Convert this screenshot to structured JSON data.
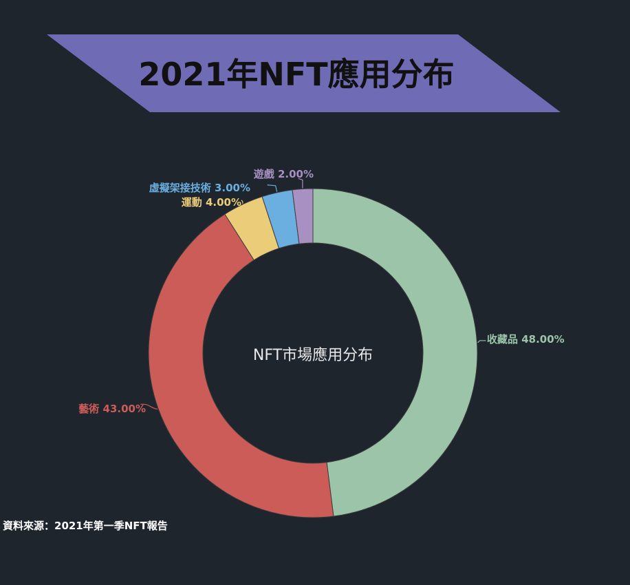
{
  "header": {
    "title": "2021年NFT應用分布",
    "banner_color": "#6f6bb5"
  },
  "chart_data": {
    "type": "pie",
    "variant": "donut",
    "center_label": "NFT市場應用分布",
    "slices": [
      {
        "label": "收藏品",
        "value": 48.0,
        "display": "收藏品 48.00%",
        "color": "#9bc4a9"
      },
      {
        "label": "藝術",
        "value": 43.0,
        "display": "藝術 43.00%",
        "color": "#cc5c57"
      },
      {
        "label": "運動",
        "value": 4.0,
        "display": "運動 4.00%",
        "color": "#ebcc78"
      },
      {
        "label": "虛擬架接技術",
        "value": 3.0,
        "display": "虛擬架接技術 3.00%",
        "color": "#6aafe0"
      },
      {
        "label": "遊戲",
        "value": 2.0,
        "display": "遊戲 2.00%",
        "color": "#a990c2"
      }
    ],
    "start_angle": "top",
    "direction": "clockwise"
  },
  "footer": {
    "source": "資料來源：2021年第一季NFT報告"
  }
}
